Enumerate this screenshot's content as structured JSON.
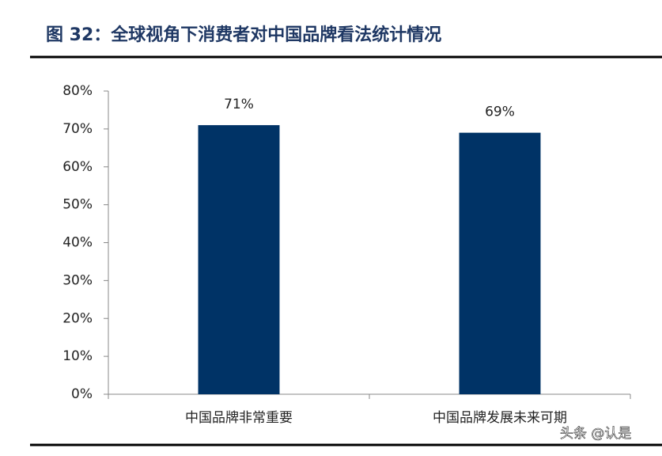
{
  "chart_data": {
    "type": "bar",
    "title": "图 32：全球视角下消费者对中国品牌看法统计情况",
    "categories": [
      "中国品牌非常重要",
      "中国品牌发展未来可期"
    ],
    "values": [
      71,
      69
    ],
    "value_labels": [
      "71%",
      "69%"
    ],
    "color": "#003366",
    "ylim": [
      0,
      80
    ],
    "yticks": [
      {
        "value": 0,
        "label": "0%"
      },
      {
        "value": 10,
        "label": "10%"
      },
      {
        "value": 20,
        "label": "20%"
      },
      {
        "value": 30,
        "label": "30%"
      },
      {
        "value": 40,
        "label": "40%"
      },
      {
        "value": 50,
        "label": "50%"
      },
      {
        "value": 60,
        "label": "60%"
      },
      {
        "value": 70,
        "label": "70%"
      },
      {
        "value": 80,
        "label": "80%"
      }
    ],
    "grid": false
  },
  "watermark": "头条 @认是"
}
